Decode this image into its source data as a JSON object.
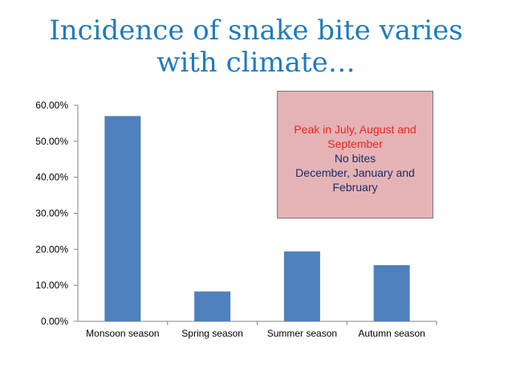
{
  "slide": {
    "title_line1": "Incidence of snake bite varies",
    "title_line2": "with climate…"
  },
  "callout": {
    "line1": "Peak in July, August and",
    "line2": "September",
    "line3": "No bites",
    "line4": "December, January and",
    "line5": "February"
  },
  "colors": {
    "bar": "#4f81bd",
    "title": "#1f7bbd",
    "callout_bg": "#e5b3b5",
    "callout_red": "#e8251f",
    "callout_navy": "#1d2a6b"
  },
  "chart_data": {
    "type": "bar",
    "title": "",
    "xlabel": "",
    "ylabel": "",
    "categories": [
      "Monsoon season",
      "Spring season",
      "Summer season",
      "Autumn season"
    ],
    "values": [
      57.0,
      8.3,
      19.4,
      15.6
    ],
    "ylim": [
      0,
      60
    ],
    "yticks": [
      "0.00%",
      "10.00%",
      "20.00%",
      "30.00%",
      "40.00%",
      "50.00%",
      "60.00%"
    ],
    "grid": false,
    "legend": "none"
  }
}
